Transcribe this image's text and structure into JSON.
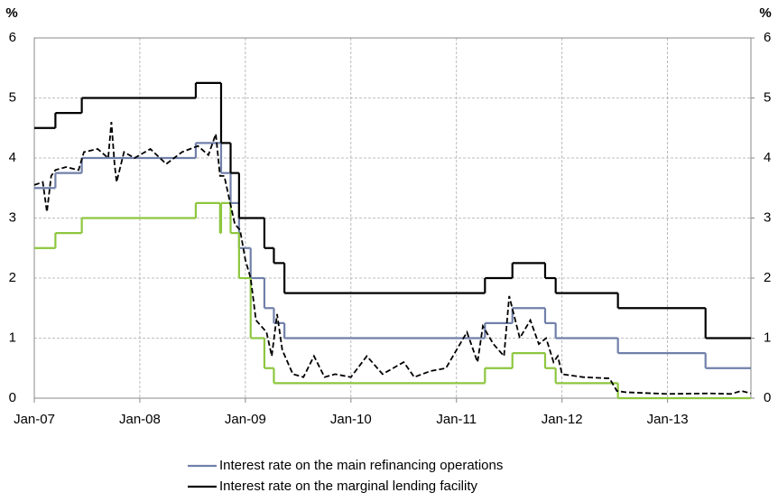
{
  "chart_data": {
    "type": "line",
    "y_unit_left": "%",
    "y_unit_right": "%",
    "xlim": [
      2007.0,
      2013.79
    ],
    "xticks": [
      {
        "value": 2007,
        "label": "Jan-07"
      },
      {
        "value": 2008,
        "label": "Jan-08"
      },
      {
        "value": 2009,
        "label": "Jan-09"
      },
      {
        "value": 2010,
        "label": "Jan-10"
      },
      {
        "value": 2011,
        "label": "Jan-11"
      },
      {
        "value": 2012,
        "label": "Jan-12"
      },
      {
        "value": 2013,
        "label": "Jan-13"
      }
    ],
    "ylim": [
      0,
      6
    ],
    "yticks": [
      0,
      1,
      2,
      3,
      4,
      5,
      6
    ],
    "y2lim": [
      0,
      6
    ],
    "y2ticks": [
      0,
      1,
      2,
      3,
      4,
      5,
      6
    ],
    "grid": true,
    "legend": "bottom",
    "series": [
      {
        "name": "Interest rate on the main refinancing operations",
        "color": "#7180aa",
        "step": true,
        "x": [
          2007.0,
          2007.2,
          2007.45,
          2008.53,
          2008.77,
          2008.86,
          2008.94,
          2009.05,
          2009.18,
          2009.27,
          2009.37,
          2011.27,
          2011.53,
          2011.84,
          2011.94,
          2012.53,
          2013.36
        ],
        "values": [
          3.5,
          3.75,
          4.0,
          4.25,
          3.75,
          3.25,
          2.5,
          2.0,
          1.5,
          1.25,
          1.0,
          1.25,
          1.5,
          1.25,
          1.0,
          0.75,
          0.5
        ]
      },
      {
        "name": "Interest rate on the marginal lending facility",
        "color": "#000000",
        "step": true,
        "x": [
          2007.0,
          2007.2,
          2007.45,
          2008.53,
          2008.77,
          2008.86,
          2008.94,
          2009.18,
          2009.27,
          2009.37,
          2011.27,
          2011.53,
          2011.84,
          2011.94,
          2012.53,
          2013.36
        ],
        "values": [
          4.5,
          4.75,
          5.0,
          5.25,
          4.25,
          3.75,
          3.0,
          2.5,
          2.25,
          1.75,
          2.0,
          2.25,
          2.0,
          1.75,
          1.5,
          1.0
        ]
      },
      {
        "color": "#8dc63f",
        "step": true,
        "x": [
          2007.0,
          2007.2,
          2007.45,
          2008.53,
          2008.76,
          2008.77,
          2008.86,
          2008.94,
          2009.05,
          2009.18,
          2009.27,
          2011.27,
          2011.53,
          2011.84,
          2011.94,
          2012.53
        ],
        "values": [
          2.5,
          2.75,
          3.0,
          3.25,
          2.75,
          3.25,
          2.75,
          2.0,
          1.0,
          0.5,
          0.25,
          0.5,
          0.75,
          0.5,
          0.25,
          0.0
        ]
      },
      {
        "color": "#000000",
        "style": "dashed",
        "x": [
          2007.0,
          2007.08,
          2007.12,
          2007.16,
          2007.2,
          2007.3,
          2007.42,
          2007.47,
          2007.6,
          2007.7,
          2007.73,
          2007.76,
          2007.78,
          2007.85,
          2007.95,
          2008.1,
          2008.25,
          2008.4,
          2008.55,
          2008.65,
          2008.72,
          2008.76,
          2008.8,
          2008.85,
          2008.9,
          2008.95,
          2009.0,
          2009.05,
          2009.1,
          2009.2,
          2009.25,
          2009.3,
          2009.35,
          2009.45,
          2009.55,
          2009.65,
          2009.75,
          2009.85,
          2010.0,
          2010.15,
          2010.3,
          2010.5,
          2010.6,
          2010.75,
          2010.9,
          2011.0,
          2011.1,
          2011.2,
          2011.25,
          2011.35,
          2011.45,
          2011.5,
          2011.6,
          2011.7,
          2011.78,
          2011.85,
          2011.92,
          2011.96,
          2012.0,
          2012.2,
          2012.45,
          2012.52,
          2012.6,
          2013.0,
          2013.4,
          2013.6,
          2013.7,
          2013.79
        ],
        "values": [
          3.55,
          3.6,
          3.1,
          3.7,
          3.8,
          3.85,
          3.8,
          4.1,
          4.15,
          4.0,
          4.6,
          3.9,
          3.6,
          4.1,
          4.0,
          4.15,
          3.9,
          4.1,
          4.2,
          4.05,
          4.4,
          3.7,
          3.7,
          3.3,
          2.9,
          2.8,
          2.3,
          2.0,
          1.3,
          1.1,
          0.7,
          1.4,
          0.8,
          0.4,
          0.35,
          0.7,
          0.35,
          0.4,
          0.35,
          0.7,
          0.4,
          0.6,
          0.35,
          0.45,
          0.5,
          0.8,
          1.1,
          0.6,
          1.2,
          0.9,
          0.7,
          1.7,
          1.0,
          1.3,
          0.9,
          1.0,
          0.6,
          0.7,
          0.4,
          0.35,
          0.33,
          0.12,
          0.1,
          0.07,
          0.08,
          0.07,
          0.12,
          0.08
        ]
      }
    ]
  }
}
